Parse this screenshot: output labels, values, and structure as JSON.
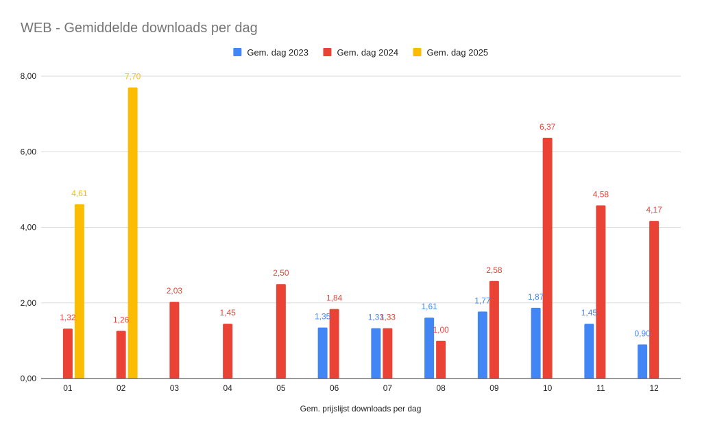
{
  "chart_data": {
    "type": "bar",
    "title": "WEB - Gemiddelde downloads per dag",
    "xlabel": "Gem. prijslijst downloads per dag",
    "ylabel": "",
    "ylim": [
      0,
      8
    ],
    "yticks": [
      "0,00",
      "2,00",
      "4,00",
      "6,00",
      "8,00"
    ],
    "grid": true,
    "legend_position": "top-center",
    "categories": [
      "01",
      "02",
      "03",
      "04",
      "05",
      "06",
      "07",
      "08",
      "09",
      "10",
      "11",
      "12"
    ],
    "series": [
      {
        "name": "Gem. dag 2023",
        "color": "#4285F4",
        "values": [
          null,
          null,
          null,
          null,
          null,
          1.35,
          1.33,
          1.61,
          1.77,
          1.87,
          1.45,
          0.9
        ],
        "labels": [
          null,
          null,
          null,
          null,
          null,
          "1,35",
          "1,33",
          "1,61",
          "1,77",
          "1,87",
          "1,45",
          "0,90"
        ]
      },
      {
        "name": "Gem. dag 2024",
        "color": "#EA4335",
        "values": [
          1.32,
          1.26,
          2.03,
          1.45,
          2.5,
          1.84,
          1.33,
          1.0,
          2.58,
          6.37,
          4.58,
          4.17
        ],
        "labels": [
          "1,32",
          "1,26",
          "2,03",
          "1,45",
          "2,50",
          "1,84",
          "1,33",
          "1,00",
          "2,58",
          "6,37",
          "4,58",
          "4,17"
        ]
      },
      {
        "name": "Gem. dag 2025",
        "color": "#FBBC04",
        "values": [
          4.61,
          7.7,
          null,
          null,
          null,
          null,
          null,
          null,
          null,
          null,
          null,
          null
        ],
        "labels": [
          "4,61",
          "7,70",
          null,
          null,
          null,
          null,
          null,
          null,
          null,
          null,
          null,
          null
        ]
      }
    ]
  }
}
